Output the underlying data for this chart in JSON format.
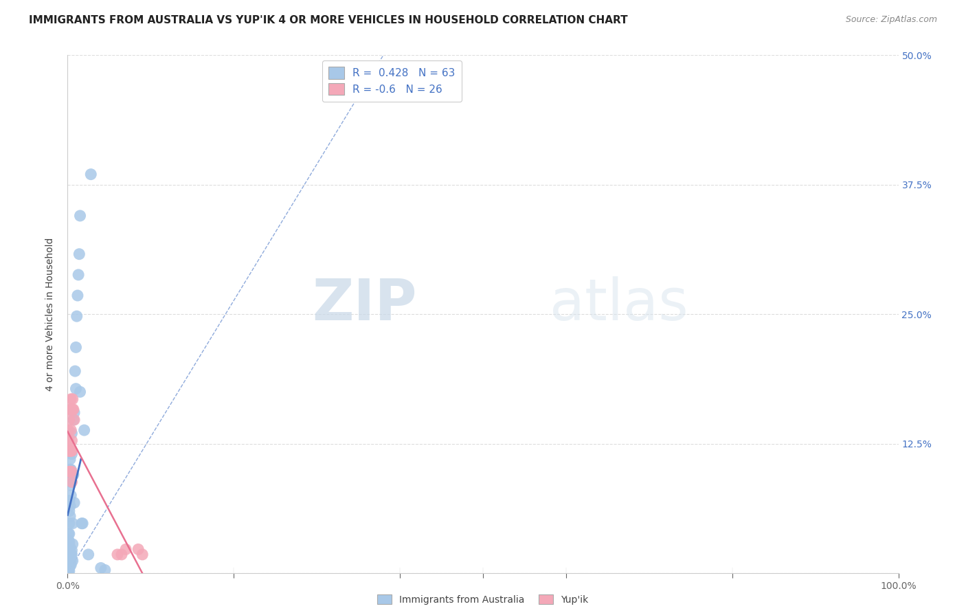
{
  "title": "IMMIGRANTS FROM AUSTRALIA VS YUP'IK 4 OR MORE VEHICLES IN HOUSEHOLD CORRELATION CHART",
  "source": "Source: ZipAtlas.com",
  "ylabel": "4 or more Vehicles in Household",
  "xmin": 0.0,
  "xmax": 1.0,
  "ymin": 0.0,
  "ymax": 0.5,
  "yticks": [
    0.0,
    0.125,
    0.25,
    0.375,
    0.5
  ],
  "yticklabels": [
    "",
    "12.5%",
    "25.0%",
    "37.5%",
    "50.0%"
  ],
  "blue_R": 0.428,
  "blue_N": 63,
  "pink_R": -0.6,
  "pink_N": 26,
  "blue_color": "#a8c8e8",
  "pink_color": "#f4a8b8",
  "blue_line_color": "#4472c4",
  "pink_line_color": "#e87090",
  "dashed_color": "#a8c8e8",
  "blue_scatter": [
    [
      0.001,
      0.005
    ],
    [
      0.001,
      0.01
    ],
    [
      0.001,
      0.015
    ],
    [
      0.001,
      0.018
    ],
    [
      0.001,
      0.022
    ],
    [
      0.001,
      0.028
    ],
    [
      0.001,
      0.032
    ],
    [
      0.001,
      0.038
    ],
    [
      0.001,
      0.002
    ],
    [
      0.002,
      0.005
    ],
    [
      0.002,
      0.008
    ],
    [
      0.002,
      0.012
    ],
    [
      0.002,
      0.018
    ],
    [
      0.002,
      0.022
    ],
    [
      0.002,
      0.03
    ],
    [
      0.002,
      0.038
    ],
    [
      0.002,
      0.048
    ],
    [
      0.002,
      0.06
    ],
    [
      0.002,
      0.07
    ],
    [
      0.002,
      0.002
    ],
    [
      0.003,
      0.008
    ],
    [
      0.003,
      0.015
    ],
    [
      0.003,
      0.02
    ],
    [
      0.003,
      0.025
    ],
    [
      0.003,
      0.055
    ],
    [
      0.003,
      0.065
    ],
    [
      0.003,
      0.085
    ],
    [
      0.003,
      0.1
    ],
    [
      0.003,
      0.11
    ],
    [
      0.004,
      0.008
    ],
    [
      0.004,
      0.012
    ],
    [
      0.004,
      0.018
    ],
    [
      0.004,
      0.075
    ],
    [
      0.004,
      0.088
    ],
    [
      0.004,
      0.1
    ],
    [
      0.005,
      0.018
    ],
    [
      0.005,
      0.022
    ],
    [
      0.005,
      0.095
    ],
    [
      0.005,
      0.115
    ],
    [
      0.005,
      0.135
    ],
    [
      0.006,
      0.012
    ],
    [
      0.006,
      0.028
    ],
    [
      0.006,
      0.048
    ],
    [
      0.007,
      0.095
    ],
    [
      0.007,
      0.148
    ],
    [
      0.008,
      0.068
    ],
    [
      0.008,
      0.155
    ],
    [
      0.009,
      0.195
    ],
    [
      0.01,
      0.178
    ],
    [
      0.01,
      0.218
    ],
    [
      0.011,
      0.248
    ],
    [
      0.012,
      0.268
    ],
    [
      0.013,
      0.288
    ],
    [
      0.014,
      0.308
    ],
    [
      0.015,
      0.175
    ],
    [
      0.015,
      0.345
    ],
    [
      0.017,
      0.048
    ],
    [
      0.018,
      0.048
    ],
    [
      0.02,
      0.138
    ],
    [
      0.025,
      0.018
    ],
    [
      0.028,
      0.385
    ],
    [
      0.04,
      0.005
    ],
    [
      0.045,
      0.003
    ]
  ],
  "pink_scatter": [
    [
      0.001,
      0.118
    ],
    [
      0.001,
      0.128
    ],
    [
      0.001,
      0.138
    ],
    [
      0.002,
      0.098
    ],
    [
      0.002,
      0.118
    ],
    [
      0.002,
      0.148
    ],
    [
      0.003,
      0.098
    ],
    [
      0.003,
      0.118
    ],
    [
      0.003,
      0.158
    ],
    [
      0.004,
      0.118
    ],
    [
      0.004,
      0.138
    ],
    [
      0.004,
      0.158
    ],
    [
      0.004,
      0.168
    ],
    [
      0.005,
      0.088
    ],
    [
      0.005,
      0.098
    ],
    [
      0.005,
      0.118
    ],
    [
      0.005,
      0.128
    ],
    [
      0.006,
      0.158
    ],
    [
      0.006,
      0.168
    ],
    [
      0.007,
      0.158
    ],
    [
      0.008,
      0.148
    ],
    [
      0.06,
      0.018
    ],
    [
      0.065,
      0.018
    ],
    [
      0.085,
      0.023
    ],
    [
      0.07,
      0.023
    ],
    [
      0.09,
      0.018
    ]
  ],
  "watermark_zip": "ZIP",
  "watermark_atlas": "atlas",
  "background_color": "#ffffff",
  "grid_color": "#dddddd",
  "title_fontsize": 11,
  "axis_label_fontsize": 10,
  "tick_fontsize": 10,
  "legend_fontsize": 11
}
